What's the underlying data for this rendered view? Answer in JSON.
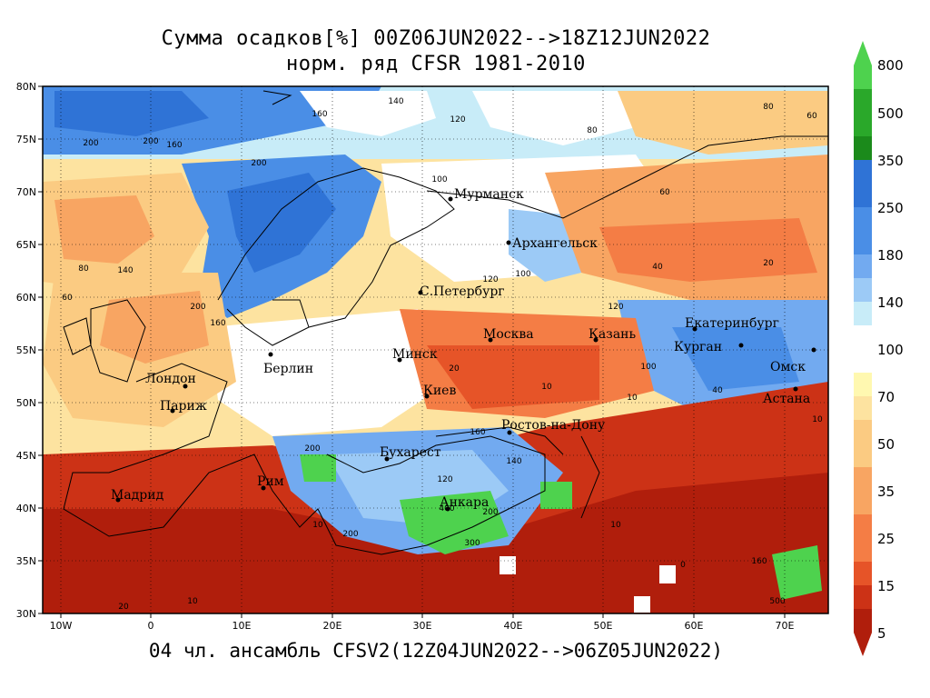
{
  "title_line1": "Сумма осадков[%] 00Z06JUN2022-->18Z12JUN2022",
  "title_line2": "норм. ряд CFSR 1981-2010",
  "footer": "04 чл. ансамбль CFSV2(12Z04JUN2022-->06Z05JUN2022)",
  "lat_labels": [
    "80N",
    "75N",
    "70N",
    "65N",
    "60N",
    "55N",
    "50N",
    "45N",
    "40N",
    "35N",
    "30N"
  ],
  "lon_labels": [
    "10W",
    "0",
    "10E",
    "20E",
    "30E",
    "40E",
    "50E",
    "60E",
    "70E"
  ],
  "colorbar": {
    "labels": [
      "800",
      "500",
      "350",
      "250",
      "180",
      "140",
      "100",
      "70",
      "50",
      "35",
      "25",
      "15",
      "5"
    ],
    "colors": [
      "#4ed24e",
      "#2aa82a",
      "#1b8a1b",
      "#2f73d6",
      "#4a8ee6",
      "#72aaf0",
      "#9ccaf6",
      "#c8ecf8",
      "#ffffff",
      "#fff8b0",
      "#fde3a0",
      "#fbcb82",
      "#f8a562",
      "#f47d45",
      "#e65428",
      "#cc3216",
      "#b01e0c"
    ]
  },
  "cities": [
    {
      "name": "Мурманск"
    },
    {
      "name": "Архангельск"
    },
    {
      "name": "С.Петербург"
    },
    {
      "name": "Москва"
    },
    {
      "name": "Казань"
    },
    {
      "name": "Екатеринбург"
    },
    {
      "name": "Курган"
    },
    {
      "name": "Омск"
    },
    {
      "name": "Астана"
    },
    {
      "name": "Минск"
    },
    {
      "name": "Берлин"
    },
    {
      "name": "Лондон"
    },
    {
      "name": "Париж"
    },
    {
      "name": "Киев"
    },
    {
      "name": "Ростов-на-Дону"
    },
    {
      "name": "Бухарест"
    },
    {
      "name": "Рим"
    },
    {
      "name": "Мадрид"
    },
    {
      "name": "Анкара"
    }
  ],
  "contour_values": [
    "200",
    "200",
    "160",
    "200",
    "100",
    "160",
    "140",
    "120",
    "80",
    "60",
    "80",
    "60",
    "40",
    "20",
    "120",
    "100",
    "140",
    "80",
    "60",
    "200",
    "160",
    "120",
    "100",
    "10",
    "20",
    "10",
    "10",
    "40",
    "160",
    "200",
    "140",
    "120",
    "200",
    "400",
    "300",
    "200",
    "500",
    "160",
    "10",
    "20",
    "10",
    "0",
    "10"
  ]
}
